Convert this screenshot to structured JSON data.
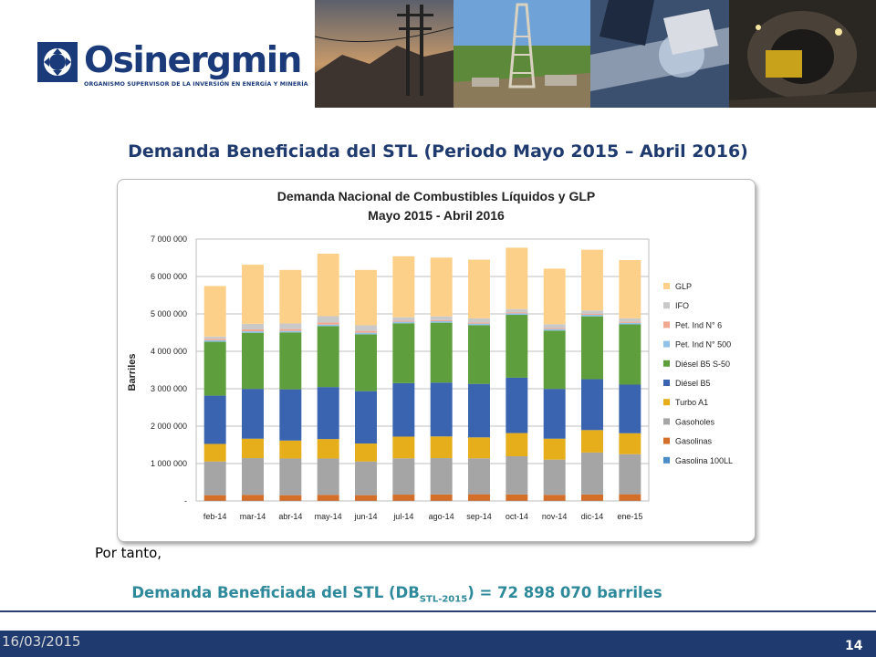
{
  "header": {
    "logo_name": "Osinergmin",
    "logo_subtitle": "ORGANISMO SUPERVISOR DE LA INVERSIÓN EN ENERGÍA Y MINERÍA"
  },
  "slide": {
    "title": "Demanda Beneficiada del STL (Periodo Mayo 2015 – Abril 2016)",
    "por_tanto": "Por tanto,",
    "result_prefix": "Demanda Beneficiada del STL (DB",
    "result_sub": "STL-2015",
    "result_suffix": ") = 72 898 070 barriles"
  },
  "footer": {
    "date": "16/03/2015",
    "page": "14"
  },
  "chart_data": {
    "type": "bar",
    "stacked": true,
    "title": "Demanda Nacional de Combustibles Líquidos y GLP",
    "subtitle": "Mayo 2015 - Abril 2016",
    "ylabel": "Barriles",
    "xlabel": "",
    "ylim": [
      0,
      7000000
    ],
    "yticks": [
      0,
      1000000,
      2000000,
      3000000,
      4000000,
      5000000,
      6000000,
      7000000
    ],
    "ytick_labels": [
      "-",
      "1 000 000",
      "2 000 000",
      "3 000 000",
      "4 000 000",
      "5 000 000",
      "6 000 000",
      "7 000 000"
    ],
    "grid": true,
    "legend_position": "right",
    "categories": [
      "feb-14",
      "mar-14",
      "abr-14",
      "may-14",
      "jun-14",
      "jul-14",
      "ago-14",
      "sep-14",
      "oct-14",
      "nov-14",
      "dic-14",
      "ene-15"
    ],
    "series": [
      {
        "name": "Gasolina 100LL",
        "color": "#4a8dc8",
        "values": [
          5000,
          5000,
          5000,
          5000,
          5000,
          5000,
          5000,
          5000,
          5000,
          5000,
          5000,
          5000
        ]
      },
      {
        "name": "Gasolinas",
        "color": "#d46f2a",
        "values": [
          150000,
          160000,
          150000,
          160000,
          150000,
          165000,
          170000,
          175000,
          170000,
          160000,
          170000,
          175000
        ]
      },
      {
        "name": "Gasoholes",
        "color": "#a5a5a5",
        "values": [
          900000,
          980000,
          980000,
          970000,
          900000,
          970000,
          970000,
          960000,
          1020000,
          940000,
          1120000,
          1070000
        ]
      },
      {
        "name": "Turbo A1",
        "color": "#e6ae1a",
        "values": [
          470000,
          520000,
          480000,
          520000,
          480000,
          580000,
          580000,
          560000,
          620000,
          560000,
          600000,
          560000
        ]
      },
      {
        "name": "Diésel B5",
        "color": "#3a64b0",
        "values": [
          1290000,
          1330000,
          1370000,
          1390000,
          1400000,
          1430000,
          1440000,
          1430000,
          1480000,
          1330000,
          1360000,
          1300000
        ]
      },
      {
        "name": "Diésel B5 S-50",
        "color": "#5f9e3d",
        "values": [
          1440000,
          1500000,
          1520000,
          1630000,
          1520000,
          1600000,
          1600000,
          1570000,
          1680000,
          1560000,
          1680000,
          1610000
        ]
      },
      {
        "name": "Pet. Ind N° 500",
        "color": "#8fc2e6",
        "values": [
          40000,
          40000,
          40000,
          40000,
          40000,
          40000,
          40000,
          40000,
          40000,
          40000,
          40000,
          40000
        ]
      },
      {
        "name": "Pet. Ind N° 6",
        "color": "#f0a890",
        "values": [
          40000,
          50000,
          50000,
          55000,
          50000,
          30000,
          30000,
          30000,
          30000,
          30000,
          30000,
          30000
        ]
      },
      {
        "name": "IFO",
        "color": "#c9c9c9",
        "values": [
          60000,
          150000,
          150000,
          170000,
          150000,
          90000,
          100000,
          110000,
          85000,
          100000,
          85000,
          90000
        ]
      },
      {
        "name": "GLP",
        "color": "#fdd08a",
        "values": [
          1350000,
          1580000,
          1430000,
          1670000,
          1480000,
          1630000,
          1570000,
          1570000,
          1640000,
          1485000,
          1625000,
          1560000
        ]
      }
    ]
  }
}
